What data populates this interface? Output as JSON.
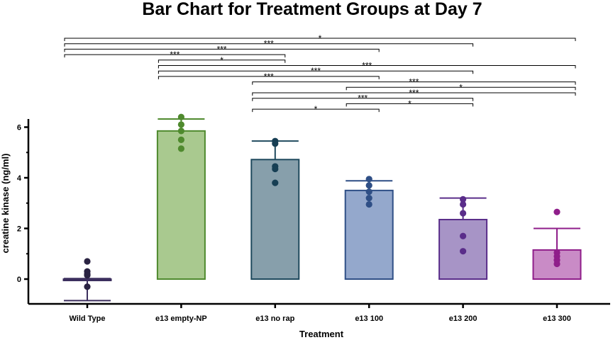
{
  "chart_data": {
    "type": "bar",
    "title": "Bar Chart for Treatment Groups at Day 7",
    "xlabel": "Treatment",
    "ylabel": "creatine kinase (ng/ml)",
    "ylim": [
      -0.9,
      6.6
    ],
    "yticks": [
      0,
      2,
      4,
      6
    ],
    "grid": false,
    "categories": [
      "Wild Type",
      "e13 empty-NP",
      "e13 no rap",
      "e13 100",
      "e13 200",
      "e13 300"
    ],
    "values": [
      -0.05,
      5.85,
      4.72,
      3.5,
      2.35,
      1.15
    ],
    "error_upper": [
      0.02,
      6.32,
      5.45,
      3.88,
      3.2,
      2.0
    ],
    "error_lower": [
      -0.85,
      5.85,
      4.72,
      3.5,
      2.35,
      1.15
    ],
    "points": [
      [
        0.7,
        0.3,
        0.2,
        0.15,
        -0.3
      ],
      [
        6.4,
        6.1,
        5.85,
        5.5,
        5.15
      ],
      [
        5.45,
        5.35,
        4.45,
        4.35,
        3.8
      ],
      [
        3.95,
        3.7,
        3.45,
        3.2,
        2.95
      ],
      [
        3.15,
        2.95,
        2.6,
        1.7,
        1.1
      ],
      [
        2.65,
        1.05,
        0.9,
        0.75,
        0.6
      ]
    ],
    "colors": [
      {
        "fill": "#c6c1d4",
        "stroke": "#3c2f5e",
        "point": "#2a2342"
      },
      {
        "fill": "#a9c98f",
        "stroke": "#4f8a2e",
        "point": "#4f8a2e"
      },
      {
        "fill": "#879fab",
        "stroke": "#1f4a5e",
        "point": "#173f54"
      },
      {
        "fill": "#94a8cc",
        "stroke": "#2f4f86",
        "point": "#2f4f86"
      },
      {
        "fill": "#a794c6",
        "stroke": "#5a2d8a",
        "point": "#5a2d8a"
      },
      {
        "fill": "#c98bc6",
        "stroke": "#8f1e8a",
        "point": "#8f1e8a"
      }
    ],
    "comparisons": [
      {
        "from": 0,
        "to": 5,
        "label": "*"
      },
      {
        "from": 0,
        "to": 4,
        "label": "***"
      },
      {
        "from": 0,
        "to": 3,
        "label": "***"
      },
      {
        "from": 0,
        "to": 2,
        "label": "***"
      },
      {
        "from": 1,
        "to": 2,
        "label": "*"
      },
      {
        "from": 1,
        "to": 5,
        "label": "***"
      },
      {
        "from": 1,
        "to": 4,
        "label": "***"
      },
      {
        "from": 1,
        "to": 3,
        "label": "***"
      },
      {
        "from": 2,
        "to": 5,
        "label": "***"
      },
      {
        "from": 3,
        "to": 5,
        "label": "*"
      },
      {
        "from": 2,
        "to": 5,
        "label": "***"
      },
      {
        "from": 2,
        "to": 4,
        "label": "***"
      },
      {
        "from": 3,
        "to": 4,
        "label": "*"
      },
      {
        "from": 2,
        "to": 3,
        "label": "*"
      }
    ]
  }
}
